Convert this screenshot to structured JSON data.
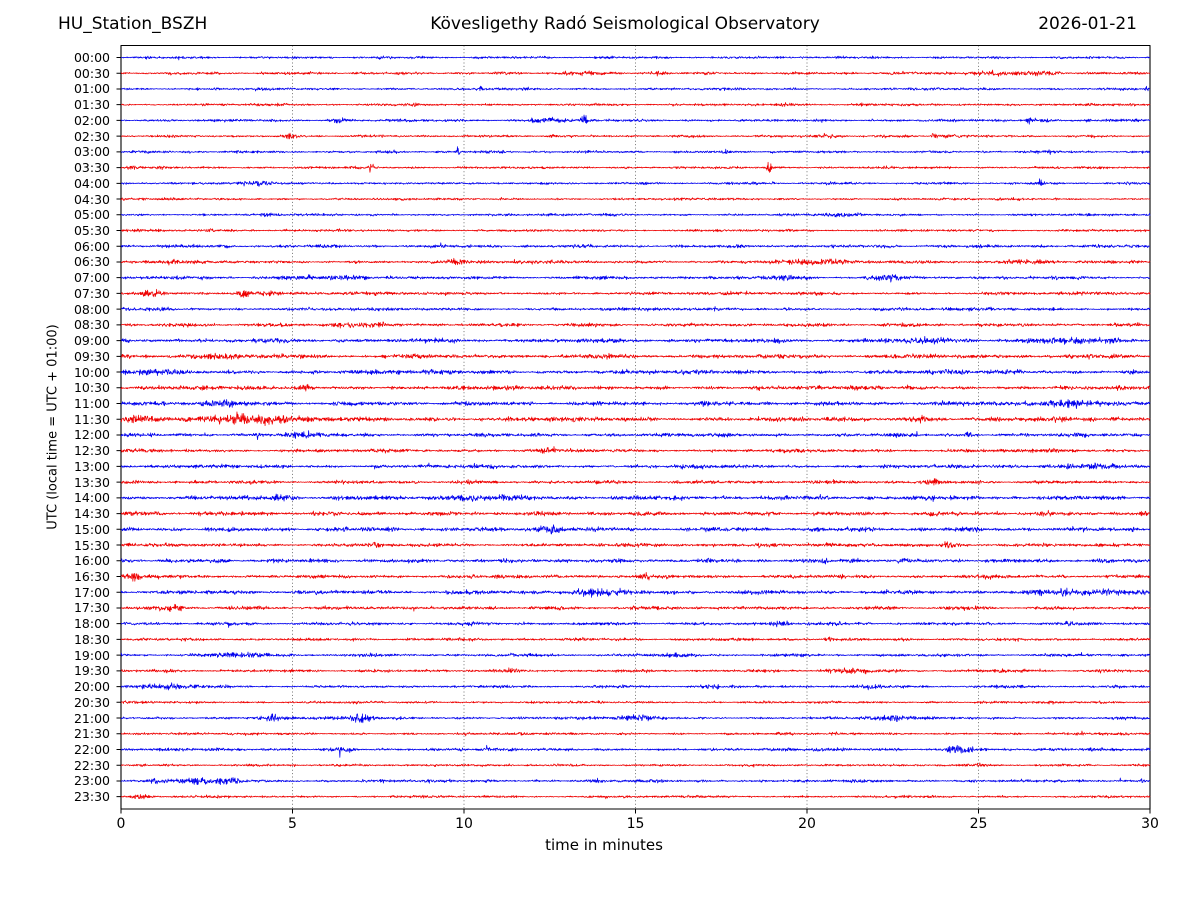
{
  "header": {
    "station": "HU_Station_BSZH",
    "observatory": "Kövesligethy Radó Seismological Observatory",
    "date": "2026-01-21"
  },
  "axes": {
    "x_label": "time in minutes",
    "y_label": "UTC (local time = UTC + 01:00)",
    "x_ticks": [
      0,
      5,
      10,
      15,
      20,
      25,
      30
    ],
    "x_grid": [
      5,
      10,
      15,
      20,
      25
    ],
    "x_range": [
      0,
      30
    ]
  },
  "chart_data": {
    "type": "line",
    "subtype": "helicorder",
    "title": "Kövesligethy Radó Seismological Observatory",
    "xlabel": "time in minutes",
    "ylabel": "UTC (local time = UTC + 01:00)",
    "minutes_per_row": 30,
    "grid": "vertical-dotted",
    "colors": {
      "even_row": "#0000ee",
      "odd_row": "#ee0000",
      "grid": "#666666",
      "spine": "#000000"
    },
    "event_format": "[start_minute, half_width_minutes, peak_amplitude_px]",
    "rows": [
      {
        "label": "00:00",
        "color": "b",
        "base": 1.0,
        "events": [
          [
            7.6,
            0.15,
            1.3
          ],
          [
            14.2,
            0.1,
            1.1
          ],
          [
            19.9,
            0.1,
            1.6
          ]
        ]
      },
      {
        "label": "00:30",
        "color": "r",
        "base": 1.1,
        "events": [
          [
            13.4,
            0.5,
            1.8
          ],
          [
            15.6,
            0.3,
            1.5
          ],
          [
            25.5,
            1.2,
            1.7
          ],
          [
            27.0,
            0.5,
            1.5
          ]
        ]
      },
      {
        "label": "01:00",
        "color": "b",
        "base": 1.0,
        "events": [
          [
            10.5,
            0.05,
            4.5
          ],
          [
            29.9,
            0.06,
            2.0
          ]
        ]
      },
      {
        "label": "01:30",
        "color": "r",
        "base": 1.0,
        "events": [
          [
            8.6,
            0.08,
            1.6
          ],
          [
            16.1,
            0.1,
            1.5
          ],
          [
            19.4,
            0.15,
            1.5
          ],
          [
            21.6,
            0.3,
            1.6
          ],
          [
            29.5,
            0.1,
            2.0
          ]
        ]
      },
      {
        "label": "02:00",
        "color": "b",
        "base": 1.1,
        "events": [
          [
            6.4,
            0.3,
            2.8
          ],
          [
            12.4,
            0.5,
            2.6
          ],
          [
            13.5,
            0.07,
            10.0
          ],
          [
            26.5,
            0.12,
            4.0
          ],
          [
            26.9,
            0.25,
            3.0
          ],
          [
            28.2,
            0.1,
            2.0
          ]
        ]
      },
      {
        "label": "02:30",
        "color": "r",
        "base": 1.0,
        "events": [
          [
            4.9,
            0.15,
            3.2
          ],
          [
            12.6,
            0.08,
            2.0
          ],
          [
            20.6,
            0.4,
            1.8
          ],
          [
            23.7,
            0.08,
            3.0
          ],
          [
            24.1,
            0.3,
            1.5
          ]
        ]
      },
      {
        "label": "03:00",
        "color": "b",
        "base": 1.0,
        "events": [
          [
            2.0,
            0.1,
            1.8
          ],
          [
            8.0,
            0.06,
            3.5
          ],
          [
            9.85,
            0.06,
            8.0
          ],
          [
            11.15,
            0.06,
            3.0
          ],
          [
            17.6,
            0.06,
            2.5
          ],
          [
            19.0,
            0.06,
            2.0
          ],
          [
            27.1,
            0.08,
            4.0
          ]
        ]
      },
      {
        "label": "03:30",
        "color": "r",
        "base": 1.0,
        "events": [
          [
            0.3,
            0.15,
            1.8
          ],
          [
            7.3,
            0.06,
            9.0
          ],
          [
            18.9,
            0.07,
            8.0
          ]
        ]
      },
      {
        "label": "04:00",
        "color": "b",
        "base": 1.0,
        "events": [
          [
            3.9,
            0.6,
            2.2
          ],
          [
            19.0,
            0.05,
            2.5
          ],
          [
            26.8,
            0.05,
            6.0
          ]
        ]
      },
      {
        "label": "04:30",
        "color": "r",
        "base": 0.95,
        "events": [
          [
            0.6,
            0.1,
            1.4
          ]
        ]
      },
      {
        "label": "05:00",
        "color": "b",
        "base": 1.0,
        "events": [
          [
            4.2,
            0.2,
            1.6
          ],
          [
            21.0,
            0.4,
            2.0
          ]
        ]
      },
      {
        "label": "05:30",
        "color": "r",
        "base": 1.0,
        "events": [
          [
            2.6,
            0.1,
            1.6
          ],
          [
            4.8,
            0.08,
            2.2
          ]
        ]
      },
      {
        "label": "06:00",
        "color": "b",
        "base": 1.3,
        "events": []
      },
      {
        "label": "06:30",
        "color": "r",
        "base": 1.4,
        "events": [
          [
            9.8,
            0.3,
            1.7
          ],
          [
            19.6,
            0.8,
            2.2
          ],
          [
            20.8,
            0.4,
            2.0
          ],
          [
            26.5,
            0.8,
            2.2
          ]
        ]
      },
      {
        "label": "07:00",
        "color": "b",
        "base": 1.4,
        "events": [
          [
            6.5,
            0.8,
            1.7
          ],
          [
            19.5,
            0.5,
            2.0
          ],
          [
            22.3,
            0.4,
            2.5
          ]
        ]
      },
      {
        "label": "07:30",
        "color": "r",
        "base": 1.3,
        "events": [
          [
            0.9,
            0.4,
            4.0
          ],
          [
            3.6,
            0.25,
            4.0
          ],
          [
            4.3,
            0.3,
            2.0
          ]
        ]
      },
      {
        "label": "08:00",
        "color": "b",
        "base": 1.3,
        "events": [
          [
            1.3,
            0.3,
            1.7
          ]
        ]
      },
      {
        "label": "08:30",
        "color": "r",
        "base": 1.4,
        "events": [
          [
            6.5,
            0.5,
            1.8
          ],
          [
            7.5,
            0.4,
            1.6
          ]
        ]
      },
      {
        "label": "09:00",
        "color": "b",
        "base": 1.7,
        "events": [
          [
            23.5,
            1.0,
            1.6
          ],
          [
            27.5,
            1.5,
            1.7
          ]
        ]
      },
      {
        "label": "09:30",
        "color": "r",
        "base": 1.8,
        "events": [
          [
            2.5,
            0.8,
            1.8
          ]
        ]
      },
      {
        "label": "10:00",
        "color": "b",
        "base": 1.8,
        "events": [
          [
            0.8,
            0.5,
            1.8
          ]
        ]
      },
      {
        "label": "10:30",
        "color": "r",
        "base": 1.7,
        "events": [
          [
            5.4,
            0.15,
            2.8
          ]
        ]
      },
      {
        "label": "11:00",
        "color": "b",
        "base": 1.7,
        "events": [
          [
            2.8,
            0.8,
            2.2
          ],
          [
            27.5,
            2.0,
            2.2
          ]
        ]
      },
      {
        "label": "11:30",
        "color": "r",
        "base": 1.9,
        "events": [
          [
            0.5,
            0.5,
            2.5
          ],
          [
            3.2,
            1.2,
            4.5
          ],
          [
            4.5,
            0.8,
            3.0
          ],
          [
            23.2,
            0.4,
            3.0
          ]
        ]
      },
      {
        "label": "12:00",
        "color": "b",
        "base": 1.5,
        "events": [
          [
            5.2,
            0.35,
            3.0
          ],
          [
            24.7,
            0.2,
            1.8
          ]
        ]
      },
      {
        "label": "12:30",
        "color": "r",
        "base": 1.4,
        "events": [
          [
            12.4,
            0.15,
            2.5
          ]
        ]
      },
      {
        "label": "13:00",
        "color": "b",
        "base": 1.5,
        "events": [
          [
            28.3,
            1.0,
            2.5
          ]
        ]
      },
      {
        "label": "13:30",
        "color": "r",
        "base": 1.4,
        "events": [
          [
            23.6,
            0.25,
            3.5
          ]
        ]
      },
      {
        "label": "14:00",
        "color": "b",
        "base": 1.8,
        "events": [
          [
            4.7,
            0.4,
            2.5
          ],
          [
            9.9,
            0.5,
            4.0
          ],
          [
            11.3,
            0.4,
            2.0
          ]
        ]
      },
      {
        "label": "14:30",
        "color": "r",
        "base": 1.7,
        "events": []
      },
      {
        "label": "15:00",
        "color": "b",
        "base": 1.7,
        "events": [
          [
            12.5,
            0.4,
            4.5
          ]
        ]
      },
      {
        "label": "15:30",
        "color": "r",
        "base": 1.4,
        "events": [
          [
            7.4,
            0.2,
            2.0
          ],
          [
            18.8,
            0.5,
            1.8
          ],
          [
            24.2,
            0.3,
            2.8
          ]
        ]
      },
      {
        "label": "16:00",
        "color": "b",
        "base": 1.6,
        "events": [
          [
            20.5,
            0.1,
            2.0
          ],
          [
            21.3,
            0.1,
            2.0
          ]
        ]
      },
      {
        "label": "16:30",
        "color": "r",
        "base": 1.5,
        "events": [
          [
            0.4,
            0.3,
            3.0
          ],
          [
            12.7,
            0.2,
            2.0
          ],
          [
            15.3,
            0.1,
            2.5
          ]
        ]
      },
      {
        "label": "17:00",
        "color": "b",
        "base": 1.7,
        "events": [
          [
            13.8,
            0.8,
            3.0
          ],
          [
            28.5,
            1.5,
            2.5
          ]
        ]
      },
      {
        "label": "17:30",
        "color": "r",
        "base": 1.4,
        "events": [
          [
            1.5,
            0.4,
            2.8
          ]
        ]
      },
      {
        "label": "18:00",
        "color": "b",
        "base": 1.3,
        "events": [
          [
            19.2,
            0.3,
            3.0
          ]
        ]
      },
      {
        "label": "18:30",
        "color": "r",
        "base": 1.2,
        "events": [
          [
            20.6,
            0.2,
            1.6
          ]
        ]
      },
      {
        "label": "19:00",
        "color": "b",
        "base": 1.2,
        "events": [
          [
            3.5,
            1.0,
            2.2
          ],
          [
            16.2,
            0.5,
            1.8
          ]
        ]
      },
      {
        "label": "19:30",
        "color": "r",
        "base": 1.2,
        "events": [
          [
            11.4,
            0.15,
            1.8
          ],
          [
            21.3,
            0.6,
            2.2
          ],
          [
            26.0,
            0.5,
            1.6
          ]
        ]
      },
      {
        "label": "20:00",
        "color": "b",
        "base": 1.1,
        "events": [
          [
            1.2,
            0.8,
            3.5
          ],
          [
            17.2,
            0.3,
            2.0
          ],
          [
            21.8,
            0.3,
            2.2
          ]
        ]
      },
      {
        "label": "20:30",
        "color": "r",
        "base": 1.0,
        "events": []
      },
      {
        "label": "21:00",
        "color": "b",
        "base": 1.2,
        "events": [
          [
            4.3,
            0.3,
            3.2
          ],
          [
            7.0,
            0.3,
            4.5
          ],
          [
            15.0,
            0.5,
            2.8
          ],
          [
            22.5,
            0.5,
            2.8
          ]
        ]
      },
      {
        "label": "21:30",
        "color": "r",
        "base": 1.0,
        "events": [
          [
            28.0,
            0.08,
            2.5
          ]
        ]
      },
      {
        "label": "22:00",
        "color": "b",
        "base": 1.2,
        "events": [
          [
            6.5,
            0.4,
            2.5
          ],
          [
            24.5,
            0.4,
            5.0
          ]
        ]
      },
      {
        "label": "22:30",
        "color": "r",
        "base": 1.0,
        "events": [
          [
            5.0,
            0.1,
            1.6
          ],
          [
            25.0,
            0.1,
            1.8
          ]
        ]
      },
      {
        "label": "23:00",
        "color": "b",
        "base": 1.2,
        "events": [
          [
            1.0,
            0.3,
            2.0
          ],
          [
            2.2,
            0.5,
            3.0
          ],
          [
            3.2,
            0.5,
            2.5
          ],
          [
            29.8,
            0.1,
            2.0
          ]
        ]
      },
      {
        "label": "23:30",
        "color": "r",
        "base": 1.0,
        "events": [
          [
            0.6,
            0.25,
            3.0
          ]
        ]
      }
    ]
  }
}
